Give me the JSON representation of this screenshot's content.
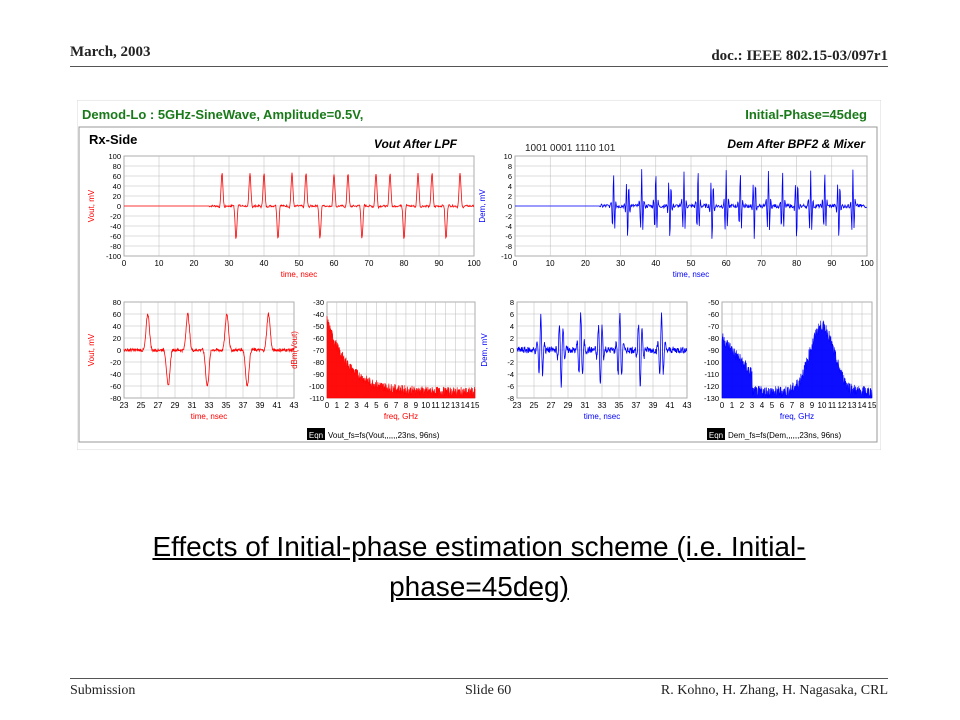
{
  "header": {
    "date": "March, 2003",
    "doc": "doc.: IEEE 802.15-03/097r1"
  },
  "footer": {
    "left": "Submission",
    "center": "Slide 60",
    "right": "R. Kohno, H. Zhang, H. Nagasaka, CRL"
  },
  "figure": {
    "title_left": "Demod-Lo : 5GHz-SineWave, Amplitude=0.5V,",
    "title_right": "Initial-Phase=45deg",
    "side_label": "Rx-Side",
    "bits_label": "1001 0001 1110 101",
    "panel_vout_title": "Vout After LPF",
    "panel_dem_title": "Dem After BPF2 & Mixer",
    "ylabel_vout": "Vout, mV",
    "ylabel_dem": "Dem, mV",
    "ylabel_dbm_vout": "dBm(Vout)",
    "xlabel_time": "time, nsec",
    "xlabel_freq": "freq, GHz",
    "eqn_tag": "Eqn",
    "eqn_vout": "Vout_fs=fs(Vout,,,,,,23ns, 96ns)",
    "eqn_dem": "Dem_fs=fs(Dem,,,,,,23ns, 96ns)",
    "colors": {
      "vout": "#ff0000",
      "dem": "#0000ff",
      "title": "#1a7a1a",
      "grid": "#bbbbbb"
    }
  },
  "chart_data": [
    {
      "type": "line",
      "name": "Vout After LPF",
      "xlabel": "time, nsec",
      "ylabel": "Vout, mV",
      "xlim": [
        0,
        100
      ],
      "ylim": [
        -100,
        100
      ],
      "xticks": [
        0,
        10,
        20,
        30,
        40,
        50,
        60,
        70,
        80,
        90,
        100
      ],
      "yticks": [
        100,
        80,
        60,
        40,
        20,
        0,
        -20,
        -40,
        -60,
        -80,
        -100
      ]
    },
    {
      "type": "line",
      "name": "Dem After BPF2 & Mixer",
      "xlabel": "time, nsec",
      "ylabel": "Dem, mV",
      "xlim": [
        0,
        100
      ],
      "ylim": [
        -10,
        10
      ],
      "xticks": [
        0,
        10,
        20,
        30,
        40,
        50,
        60,
        70,
        80,
        90,
        100
      ],
      "yticks": [
        10,
        8,
        6,
        4,
        2,
        0,
        -2,
        -4,
        -6,
        -8,
        -10
      ]
    },
    {
      "type": "line",
      "xlabel": "time, nsec",
      "ylabel": "Vout, mV",
      "xlim": [
        23,
        43
      ],
      "ylim": [
        -80,
        80
      ],
      "xticks": [
        23,
        25,
        27,
        29,
        31,
        33,
        35,
        37,
        39,
        41,
        43
      ],
      "yticks": [
        80,
        60,
        40,
        20,
        0,
        -20,
        -40,
        -60,
        -80
      ]
    },
    {
      "type": "area",
      "xlabel": "freq, GHz",
      "ylabel": "dBm(Vout)",
      "xlim": [
        0,
        15
      ],
      "ylim": [
        -110,
        -30
      ],
      "xticks": [
        0,
        1,
        2,
        3,
        4,
        5,
        6,
        7,
        8,
        9,
        10,
        11,
        12,
        13,
        14,
        15
      ],
      "yticks": [
        -30,
        -40,
        -50,
        -60,
        -70,
        -80,
        -90,
        -100,
        -110
      ]
    },
    {
      "type": "line",
      "xlabel": "time, nsec",
      "ylabel": "Dem, mV",
      "xlim": [
        23,
        43
      ],
      "ylim": [
        -8,
        8
      ],
      "xticks": [
        23,
        25,
        27,
        29,
        31,
        33,
        35,
        37,
        39,
        41,
        43
      ],
      "yticks": [
        8,
        6,
        4,
        2,
        0,
        -2,
        -4,
        -6,
        -8
      ]
    },
    {
      "type": "area",
      "xlabel": "freq, GHz",
      "xlim": [
        0,
        15
      ],
      "ylim": [
        -130,
        -50
      ],
      "xticks": [
        0,
        1,
        2,
        3,
        4,
        5,
        6,
        7,
        8,
        9,
        10,
        11,
        12,
        13,
        14,
        15
      ],
      "yticks": [
        -50,
        -60,
        -70,
        -80,
        -90,
        -100,
        -110,
        -120,
        -130
      ]
    }
  ],
  "caption": "Effects of Initial-phase estimation scheme (i.e. Initial-phase=45deg)"
}
